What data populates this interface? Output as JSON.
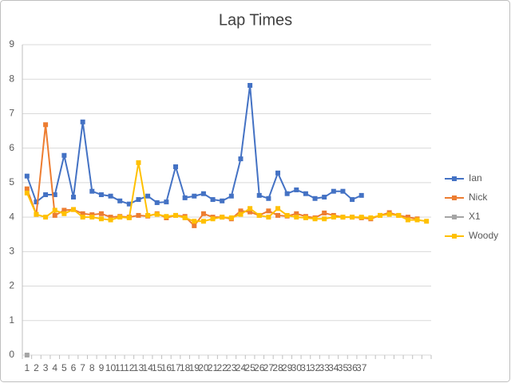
{
  "chart_data": {
    "type": "line",
    "title": "Lap Times",
    "categories": [
      "1",
      "2",
      "3",
      "4",
      "5",
      "6",
      "7",
      "8",
      "9",
      "10",
      "11",
      "12",
      "13",
      "14",
      "15",
      "16",
      "17",
      "18",
      "19",
      "20",
      "21",
      "22",
      "23",
      "24",
      "25",
      "26",
      "27",
      "28",
      "29",
      "30",
      "31",
      "32",
      "33",
      "34",
      "35",
      "36",
      "37",
      null,
      null,
      null,
      null,
      null,
      null,
      null
    ],
    "ylim": [
      0,
      9
    ],
    "yticks": [
      0,
      1,
      2,
      3,
      4,
      5,
      6,
      7,
      8,
      9
    ],
    "grid": true,
    "legend": "right",
    "series": [
      {
        "name": "Ian",
        "color": "#4472c4",
        "values": [
          5.19,
          4.44,
          4.65,
          4.65,
          5.79,
          4.58,
          6.76,
          4.75,
          4.65,
          4.61,
          4.47,
          4.38,
          4.51,
          4.61,
          4.42,
          4.44,
          5.46,
          4.56,
          4.61,
          4.68,
          4.51,
          4.47,
          4.61,
          5.69,
          7.82,
          4.63,
          4.54,
          5.28,
          4.68,
          4.79,
          4.68,
          4.54,
          4.58,
          4.75,
          4.75,
          4.51,
          4.63,
          null,
          null,
          null,
          null,
          null,
          null,
          null
        ]
      },
      {
        "name": "Nick",
        "color": "#ed7d31",
        "values": [
          4.82,
          4.08,
          6.68,
          4.05,
          4.2,
          4.22,
          4.1,
          4.07,
          4.1,
          4.0,
          4.02,
          4.0,
          4.05,
          4.03,
          4.1,
          3.98,
          4.05,
          4.02,
          3.75,
          4.1,
          4.0,
          4.0,
          3.95,
          4.18,
          4.15,
          4.05,
          4.18,
          4.05,
          4.03,
          4.1,
          4.02,
          3.98,
          4.12,
          4.05,
          4.0,
          4.0,
          3.98,
          3.95,
          4.05,
          4.13,
          4.05,
          4.0,
          3.95,
          null
        ]
      },
      {
        "name": "X1",
        "color": "#a5a5a5",
        "values": [
          0,
          null,
          null,
          null,
          null,
          null,
          null,
          null,
          null,
          null,
          null,
          null,
          null,
          null,
          null,
          null,
          null,
          null,
          null,
          null,
          null,
          null,
          null,
          null,
          null,
          null,
          null,
          null,
          null,
          null,
          null,
          null,
          null,
          null,
          null,
          null,
          null,
          null,
          null,
          null,
          null,
          null,
          null,
          null
        ]
      },
      {
        "name": "Woody",
        "color": "#ffc000",
        "values": [
          4.7,
          4.08,
          4.0,
          4.2,
          4.1,
          4.22,
          4.0,
          4.0,
          3.95,
          3.92,
          4.0,
          3.98,
          5.58,
          4.05,
          4.08,
          4.02,
          4.05,
          3.98,
          3.88,
          3.88,
          3.95,
          4.0,
          3.98,
          4.08,
          4.25,
          4.05,
          4.0,
          4.25,
          4.05,
          4.0,
          3.98,
          3.95,
          3.95,
          4.0,
          4.0,
          4.0,
          4.0,
          3.98,
          4.05,
          4.08,
          4.05,
          3.92,
          3.92,
          3.88
        ]
      }
    ]
  }
}
